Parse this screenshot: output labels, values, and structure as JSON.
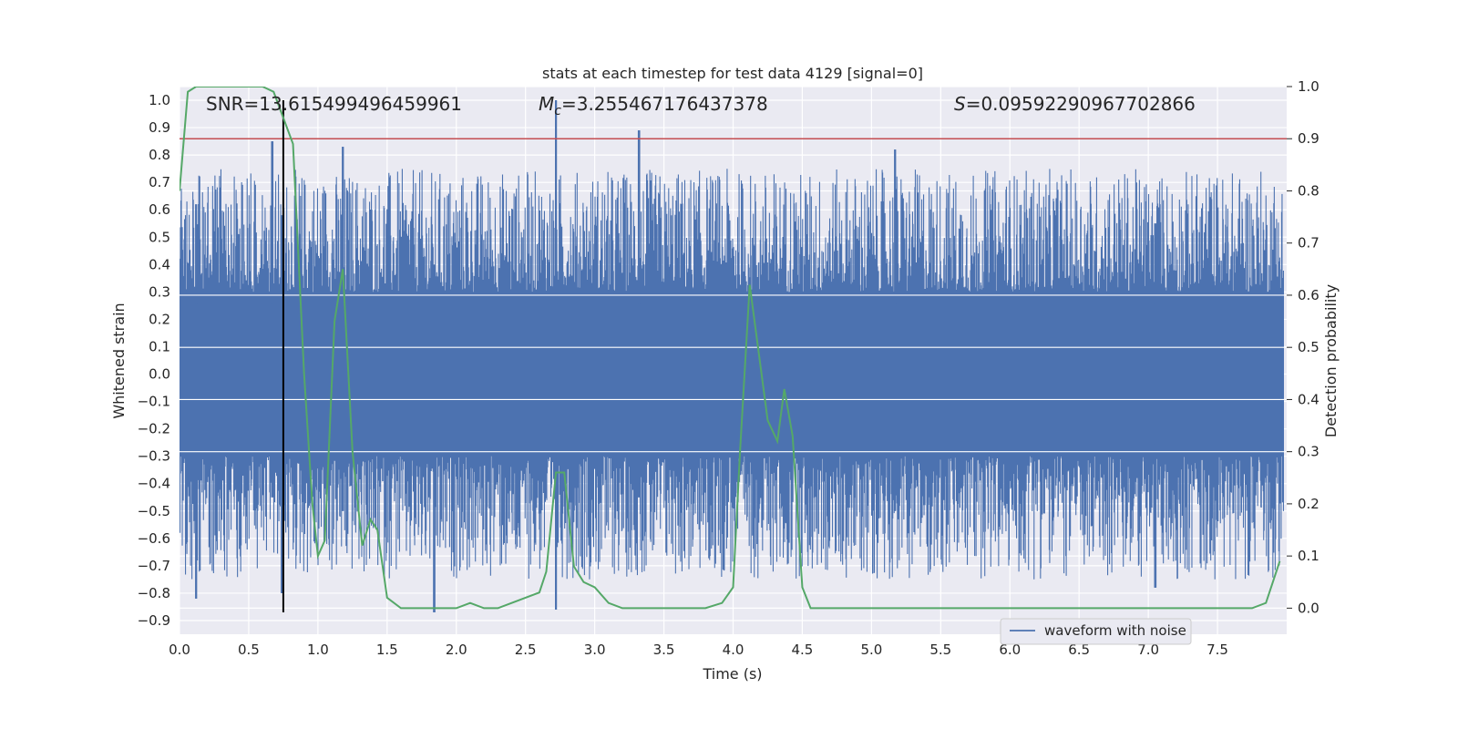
{
  "chart_data": {
    "type": "line",
    "title": "stats at each timestep for test data 4129 [signal=0]",
    "xlabel": "Time (s)",
    "ylabel_left": "Whitened strain",
    "ylabel_right": "Detection probability",
    "xlim": [
      0.0,
      8.0
    ],
    "ylim_left": [
      -0.95,
      1.05
    ],
    "ylim_right": [
      -0.05,
      1.0
    ],
    "x_ticks": [
      "0.0",
      "0.5",
      "1.0",
      "1.5",
      "2.0",
      "2.5",
      "3.0",
      "3.5",
      "4.0",
      "4.5",
      "5.0",
      "5.5",
      "6.0",
      "6.5",
      "7.0",
      "7.5"
    ],
    "y_left_ticks": [
      "-0.9",
      "-0.8",
      "-0.7",
      "-0.6",
      "-0.5",
      "-0.4",
      "-0.3",
      "-0.2",
      "-0.1",
      "0.0",
      "0.1",
      "0.2",
      "0.3",
      "0.4",
      "0.5",
      "0.6",
      "0.7",
      "0.8",
      "0.9",
      "1.0"
    ],
    "y_right_ticks": [
      "0.0",
      "0.1",
      "0.2",
      "0.3",
      "0.4",
      "0.5",
      "0.6",
      "0.7",
      "0.8",
      "0.9",
      "1.0"
    ],
    "annotations": {
      "snr": "SNR=13.615499496459961",
      "mc_symbol": "M",
      "mc_sub": "c",
      "mc_value": "=3.255467176437378",
      "s_symbol": "S",
      "s_value": "=0.09592290967702866"
    },
    "threshold": {
      "axis": "right",
      "value": 0.9,
      "color": "#c44e52"
    },
    "marker_line": {
      "x": 0.75,
      "ymin": -0.87,
      "ymax": 1.0,
      "color": "#000000"
    },
    "series": [
      {
        "name": "waveform with noise",
        "axis": "left",
        "color": "#4c72b0",
        "envelope": {
          "core_low": -0.3,
          "core_high": 0.3,
          "spikes": [
            {
              "x": 0.12,
              "low": -0.82,
              "high": 0.62
            },
            {
              "x": 0.67,
              "low": -0.45,
              "high": 0.85
            },
            {
              "x": 0.74,
              "low": -0.8,
              "high": 0.58
            },
            {
              "x": 1.18,
              "low": -0.5,
              "high": 0.83
            },
            {
              "x": 1.84,
              "low": -0.87,
              "high": 0.4
            },
            {
              "x": 2.72,
              "low": -0.86,
              "high": 1.0
            },
            {
              "x": 3.32,
              "low": -0.45,
              "high": 0.89
            },
            {
              "x": 5.17,
              "low": -0.5,
              "high": 0.82
            },
            {
              "x": 7.05,
              "low": -0.78,
              "high": 0.55
            }
          ]
        }
      },
      {
        "name": "detection probability",
        "axis": "right",
        "color": "#55a868",
        "x": [
          0.0,
          0.06,
          0.12,
          0.25,
          0.4,
          0.6,
          0.68,
          0.75,
          0.82,
          0.9,
          0.96,
          1.0,
          1.05,
          1.12,
          1.18,
          1.25,
          1.32,
          1.38,
          1.43,
          1.5,
          1.6,
          1.8,
          2.0,
          2.1,
          2.2,
          2.3,
          2.4,
          2.5,
          2.6,
          2.65,
          2.72,
          2.78,
          2.85,
          2.92,
          3.0,
          3.1,
          3.2,
          3.4,
          3.6,
          3.8,
          3.92,
          4.0,
          4.05,
          4.12,
          4.18,
          4.25,
          4.32,
          4.37,
          4.43,
          4.5,
          4.56,
          4.7,
          5.0,
          5.5,
          6.0,
          6.5,
          7.0,
          7.5,
          7.75,
          7.85,
          7.95
        ],
        "y": [
          0.8,
          0.99,
          1.0,
          1.0,
          1.0,
          1.0,
          0.99,
          0.94,
          0.89,
          0.45,
          0.2,
          0.1,
          0.13,
          0.55,
          0.65,
          0.3,
          0.12,
          0.17,
          0.15,
          0.02,
          0.0,
          0.0,
          0.0,
          0.01,
          0.0,
          0.0,
          0.01,
          0.02,
          0.03,
          0.07,
          0.26,
          0.26,
          0.08,
          0.05,
          0.04,
          0.01,
          0.0,
          0.0,
          0.0,
          0.0,
          0.01,
          0.04,
          0.3,
          0.62,
          0.5,
          0.36,
          0.32,
          0.42,
          0.33,
          0.04,
          0.0,
          0.0,
          0.0,
          0.0,
          0.0,
          0.0,
          0.0,
          0.0,
          0.0,
          0.01,
          0.09
        ]
      }
    ],
    "legend": {
      "label": "waveform with noise",
      "placement": "lower-right"
    }
  }
}
